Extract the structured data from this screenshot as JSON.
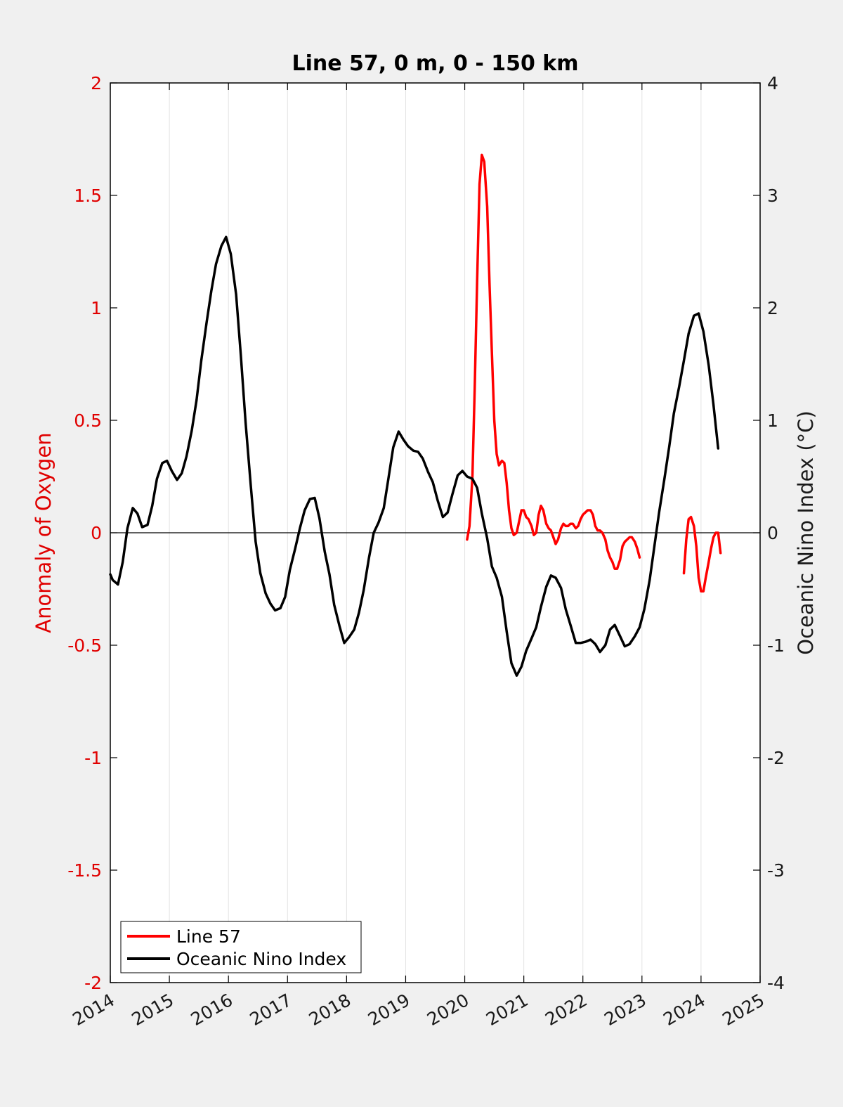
{
  "chart_data": {
    "type": "line",
    "title": "Line 57, 0 m, 0 - 150 km",
    "ylabel_left": "Anomaly of Oxygen",
    "ylabel_right": "Oceanic Nino Index (°C)",
    "xlim": [
      2014,
      2025
    ],
    "ylim_left": [
      -2,
      2
    ],
    "ylim_right": [
      -4,
      4
    ],
    "x_ticks": [
      "2014",
      "2015",
      "2016",
      "2017",
      "2018",
      "2019",
      "2020",
      "2021",
      "2022",
      "2023",
      "2024",
      "2025"
    ],
    "y_left_ticks": [
      "2",
      "1.5",
      "1",
      "0.5",
      "0",
      "-0.5",
      "-1",
      "-1.5",
      "-2"
    ],
    "y_right_ticks": [
      "4",
      "3",
      "2",
      "1",
      "0",
      "-1",
      "-2",
      "-3",
      "-4"
    ],
    "grid": "vertical",
    "legend_position": "bottom-left",
    "colors": {
      "line57": "#ff0000",
      "oni": "#000000"
    },
    "series": [
      {
        "name": "Line 57",
        "axis": "left",
        "segments": [
          [
            [
              2020.04,
              -0.03
            ],
            [
              2020.08,
              0.03
            ],
            [
              2020.13,
              0.25
            ],
            [
              2020.17,
              0.65
            ],
            [
              2020.21,
              1.12
            ],
            [
              2020.25,
              1.55
            ],
            [
              2020.29,
              1.68
            ],
            [
              2020.33,
              1.65
            ],
            [
              2020.38,
              1.45
            ],
            [
              2020.42,
              1.1
            ],
            [
              2020.46,
              0.8
            ],
            [
              2020.5,
              0.5
            ],
            [
              2020.54,
              0.35
            ],
            [
              2020.58,
              0.3
            ],
            [
              2020.63,
              0.32
            ],
            [
              2020.67,
              0.31
            ],
            [
              2020.71,
              0.22
            ],
            [
              2020.75,
              0.1
            ],
            [
              2020.79,
              0.02
            ],
            [
              2020.83,
              -0.01
            ],
            [
              2020.88,
              0.0
            ],
            [
              2020.92,
              0.05
            ],
            [
              2020.96,
              0.1
            ],
            [
              2021.0,
              0.1
            ],
            [
              2021.04,
              0.07
            ],
            [
              2021.08,
              0.06
            ],
            [
              2021.13,
              0.03
            ],
            [
              2021.17,
              -0.01
            ],
            [
              2021.21,
              0.0
            ],
            [
              2021.25,
              0.08
            ],
            [
              2021.29,
              0.12
            ],
            [
              2021.33,
              0.1
            ],
            [
              2021.38,
              0.04
            ],
            [
              2021.42,
              0.02
            ],
            [
              2021.46,
              0.01
            ],
            [
              2021.5,
              -0.02
            ],
            [
              2021.54,
              -0.05
            ],
            [
              2021.58,
              -0.03
            ],
            [
              2021.63,
              0.02
            ],
            [
              2021.67,
              0.04
            ],
            [
              2021.71,
              0.03
            ],
            [
              2021.75,
              0.03
            ],
            [
              2021.79,
              0.04
            ],
            [
              2021.83,
              0.04
            ],
            [
              2021.88,
              0.02
            ],
            [
              2021.92,
              0.03
            ],
            [
              2021.96,
              0.06
            ],
            [
              2022.0,
              0.08
            ],
            [
              2022.04,
              0.09
            ],
            [
              2022.08,
              0.1
            ],
            [
              2022.13,
              0.1
            ],
            [
              2022.17,
              0.08
            ],
            [
              2022.21,
              0.03
            ],
            [
              2022.25,
              0.01
            ],
            [
              2022.29,
              0.01
            ],
            [
              2022.33,
              0.0
            ],
            [
              2022.38,
              -0.03
            ],
            [
              2022.42,
              -0.08
            ],
            [
              2022.46,
              -0.11
            ],
            [
              2022.5,
              -0.13
            ],
            [
              2022.54,
              -0.16
            ],
            [
              2022.58,
              -0.16
            ],
            [
              2022.63,
              -0.12
            ],
            [
              2022.67,
              -0.06
            ],
            [
              2022.71,
              -0.04
            ],
            [
              2022.75,
              -0.03
            ],
            [
              2022.79,
              -0.02
            ],
            [
              2022.83,
              -0.02
            ],
            [
              2022.88,
              -0.04
            ],
            [
              2022.92,
              -0.07
            ],
            [
              2022.96,
              -0.11
            ]
          ],
          [
            [
              2023.71,
              -0.18
            ],
            [
              2023.75,
              -0.03
            ],
            [
              2023.79,
              0.06
            ],
            [
              2023.83,
              0.07
            ],
            [
              2023.88,
              0.03
            ],
            [
              2023.92,
              -0.06
            ],
            [
              2023.96,
              -0.2
            ],
            [
              2024.0,
              -0.26
            ],
            [
              2024.04,
              -0.26
            ],
            [
              2024.08,
              -0.2
            ],
            [
              2024.13,
              -0.13
            ],
            [
              2024.17,
              -0.07
            ],
            [
              2024.21,
              -0.02
            ],
            [
              2024.25,
              0.0
            ],
            [
              2024.29,
              0.0
            ],
            [
              2024.33,
              -0.09
            ]
          ]
        ]
      },
      {
        "name": "Oceanic Nino Index",
        "axis": "right",
        "segments": [
          [
            [
              2014.0,
              -0.37
            ],
            [
              2014.04,
              -0.42
            ],
            [
              2014.13,
              -0.46
            ],
            [
              2014.21,
              -0.26
            ],
            [
              2014.29,
              0.04
            ],
            [
              2014.38,
              0.22
            ],
            [
              2014.46,
              0.17
            ],
            [
              2014.54,
              0.05
            ],
            [
              2014.63,
              0.07
            ],
            [
              2014.71,
              0.24
            ],
            [
              2014.79,
              0.48
            ],
            [
              2014.88,
              0.62
            ],
            [
              2014.96,
              0.64
            ],
            [
              2015.04,
              0.55
            ],
            [
              2015.13,
              0.47
            ],
            [
              2015.21,
              0.53
            ],
            [
              2015.29,
              0.68
            ],
            [
              2015.38,
              0.91
            ],
            [
              2015.46,
              1.18
            ],
            [
              2015.54,
              1.53
            ],
            [
              2015.63,
              1.87
            ],
            [
              2015.71,
              2.15
            ],
            [
              2015.79,
              2.39
            ],
            [
              2015.88,
              2.55
            ],
            [
              2015.96,
              2.63
            ],
            [
              2016.04,
              2.48
            ],
            [
              2016.13,
              2.12
            ],
            [
              2016.21,
              1.58
            ],
            [
              2016.29,
              0.98
            ],
            [
              2016.38,
              0.41
            ],
            [
              2016.46,
              -0.08
            ],
            [
              2016.54,
              -0.36
            ],
            [
              2016.63,
              -0.54
            ],
            [
              2016.71,
              -0.63
            ],
            [
              2016.79,
              -0.69
            ],
            [
              2016.88,
              -0.67
            ],
            [
              2016.96,
              -0.57
            ],
            [
              2017.04,
              -0.33
            ],
            [
              2017.13,
              -0.14
            ],
            [
              2017.21,
              0.04
            ],
            [
              2017.29,
              0.2
            ],
            [
              2017.38,
              0.3
            ],
            [
              2017.46,
              0.31
            ],
            [
              2017.54,
              0.13
            ],
            [
              2017.63,
              -0.17
            ],
            [
              2017.71,
              -0.37
            ],
            [
              2017.79,
              -0.64
            ],
            [
              2017.88,
              -0.83
            ],
            [
              2017.96,
              -0.98
            ],
            [
              2018.04,
              -0.93
            ],
            [
              2018.13,
              -0.86
            ],
            [
              2018.21,
              -0.71
            ],
            [
              2018.29,
              -0.51
            ],
            [
              2018.38,
              -0.22
            ],
            [
              2018.46,
              0.0
            ],
            [
              2018.54,
              0.09
            ],
            [
              2018.63,
              0.22
            ],
            [
              2018.71,
              0.49
            ],
            [
              2018.79,
              0.76
            ],
            [
              2018.88,
              0.9
            ],
            [
              2018.96,
              0.83
            ],
            [
              2019.04,
              0.77
            ],
            [
              2019.13,
              0.73
            ],
            [
              2019.21,
              0.72
            ],
            [
              2019.29,
              0.66
            ],
            [
              2019.38,
              0.54
            ],
            [
              2019.46,
              0.45
            ],
            [
              2019.54,
              0.29
            ],
            [
              2019.63,
              0.14
            ],
            [
              2019.71,
              0.18
            ],
            [
              2019.79,
              0.34
            ],
            [
              2019.88,
              0.51
            ],
            [
              2019.96,
              0.55
            ],
            [
              2020.04,
              0.5
            ],
            [
              2020.13,
              0.48
            ],
            [
              2020.21,
              0.4
            ],
            [
              2020.29,
              0.17
            ],
            [
              2020.38,
              -0.05
            ],
            [
              2020.46,
              -0.3
            ],
            [
              2020.54,
              -0.4
            ],
            [
              2020.63,
              -0.57
            ],
            [
              2020.71,
              -0.88
            ],
            [
              2020.79,
              -1.16
            ],
            [
              2020.88,
              -1.27
            ],
            [
              2020.96,
              -1.19
            ],
            [
              2021.04,
              -1.05
            ],
            [
              2021.13,
              -0.94
            ],
            [
              2021.21,
              -0.84
            ],
            [
              2021.29,
              -0.66
            ],
            [
              2021.38,
              -0.48
            ],
            [
              2021.46,
              -0.38
            ],
            [
              2021.54,
              -0.4
            ],
            [
              2021.63,
              -0.49
            ],
            [
              2021.71,
              -0.68
            ],
            [
              2021.79,
              -0.82
            ],
            [
              2021.88,
              -0.98
            ],
            [
              2021.96,
              -0.98
            ],
            [
              2022.04,
              -0.97
            ],
            [
              2022.13,
              -0.95
            ],
            [
              2022.21,
              -0.99
            ],
            [
              2022.29,
              -1.06
            ],
            [
              2022.38,
              -1.0
            ],
            [
              2022.46,
              -0.86
            ],
            [
              2022.54,
              -0.82
            ],
            [
              2022.63,
              -0.92
            ],
            [
              2022.71,
              -1.01
            ],
            [
              2022.79,
              -0.99
            ],
            [
              2022.88,
              -0.92
            ],
            [
              2022.96,
              -0.84
            ],
            [
              2023.04,
              -0.68
            ],
            [
              2023.13,
              -0.42
            ],
            [
              2023.21,
              -0.12
            ],
            [
              2023.29,
              0.18
            ],
            [
              2023.38,
              0.48
            ],
            [
              2023.46,
              0.76
            ],
            [
              2023.54,
              1.06
            ],
            [
              2023.63,
              1.3
            ],
            [
              2023.71,
              1.53
            ],
            [
              2023.79,
              1.77
            ],
            [
              2023.88,
              1.93
            ],
            [
              2023.96,
              1.95
            ],
            [
              2024.04,
              1.79
            ],
            [
              2024.13,
              1.49
            ],
            [
              2024.21,
              1.14
            ],
            [
              2024.29,
              0.75
            ]
          ]
        ]
      }
    ]
  }
}
